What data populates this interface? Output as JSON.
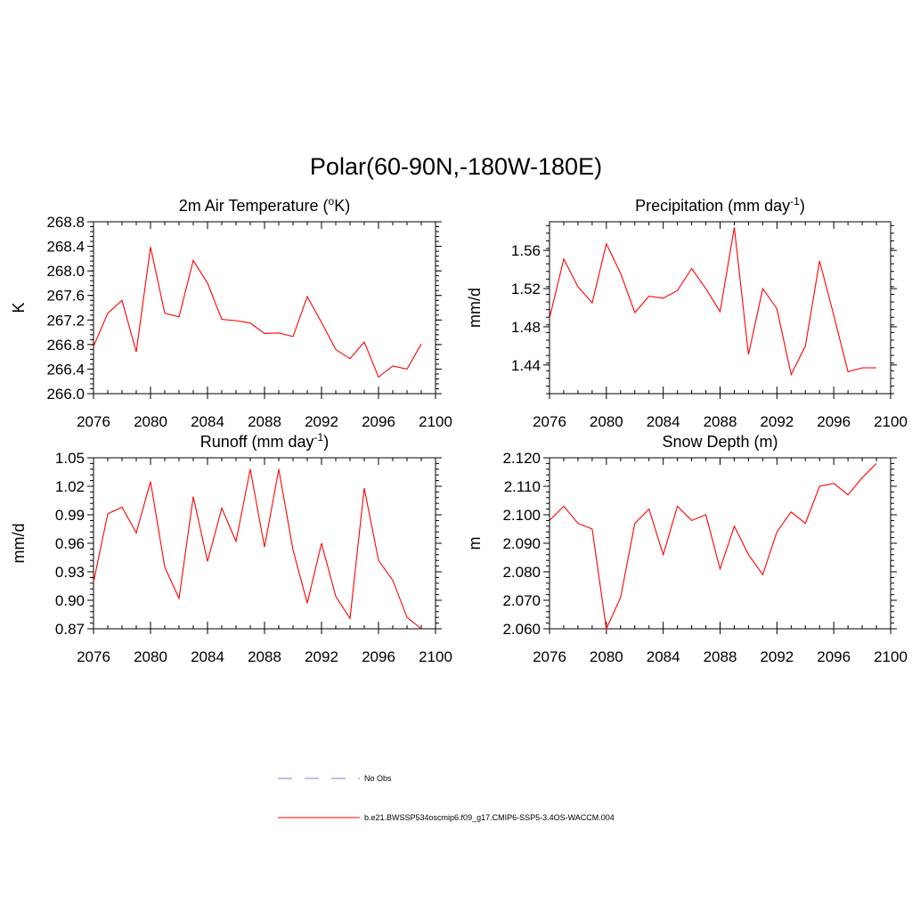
{
  "title": "Polar(60-90N,-180W-180E)",
  "colors": {
    "model": "#ff0000",
    "obs": "#9999dd",
    "axis": "#000000"
  },
  "legend": {
    "obs_label": "No Obs",
    "model_label": "b.e21.BWSSP534oscmip6.f09_g17.CMIP6-SSP5-3.4OS-WACCM.004"
  },
  "chart_data": [
    {
      "type": "line",
      "title_main": "2m Air Temperature (",
      "title_sup_pre": "o",
      "title_after": "K)",
      "title_sup_post": "",
      "title_end": "",
      "ylabel": "K",
      "xlim": [
        2076,
        2100
      ],
      "ylim": [
        266.0,
        268.8
      ],
      "x_ticks": [
        "2076",
        "2080",
        "2084",
        "2088",
        "2092",
        "2096",
        "2100"
      ],
      "y_ticks": [
        "266.0",
        "266.4",
        "266.8",
        "267.2",
        "267.6",
        "268.0",
        "268.4",
        "268.8"
      ],
      "series": [
        {
          "name": "b.e21.BWSSP534oscmip6.f09_g17.CMIP6-SSP5-3.4OS-WACCM.004",
          "x": [
            2076,
            2077,
            2078,
            2079,
            2080,
            2081,
            2082,
            2083,
            2084,
            2085,
            2086,
            2087,
            2088,
            2089,
            2090,
            2091,
            2092,
            2093,
            2094,
            2095,
            2096,
            2097,
            2098,
            2099
          ],
          "values": [
            266.77,
            267.31,
            267.52,
            266.68,
            268.39,
            267.31,
            267.25,
            268.17,
            267.8,
            267.21,
            267.19,
            267.15,
            266.98,
            266.99,
            266.93,
            267.58,
            267.16,
            266.72,
            266.57,
            266.84,
            266.27,
            266.45,
            266.4,
            266.81
          ]
        }
      ]
    },
    {
      "type": "line",
      "title_main": "Precipitation (mm day",
      "title_sup_pre": "",
      "title_after": "",
      "title_sup_post": "-1",
      "title_end": ")",
      "ylabel": "mm/d",
      "xlim": [
        2076,
        2100
      ],
      "ylim": [
        1.41,
        1.59
      ],
      "x_ticks": [
        "2076",
        "2080",
        "2084",
        "2088",
        "2092",
        "2096",
        "2100"
      ],
      "y_ticks": [
        "1.44",
        "1.48",
        "1.52",
        "1.56"
      ],
      "series": [
        {
          "name": "b.e21.BWSSP534oscmip6.f09_g17.CMIP6-SSP5-3.4OS-WACCM.004",
          "x": [
            2076,
            2077,
            2078,
            2079,
            2080,
            2081,
            2082,
            2083,
            2084,
            2085,
            2086,
            2087,
            2088,
            2089,
            2090,
            2091,
            2092,
            2093,
            2094,
            2095,
            2096,
            2097,
            2098,
            2099
          ],
          "values": [
            1.489,
            1.551,
            1.522,
            1.505,
            1.567,
            1.536,
            1.495,
            1.512,
            1.51,
            1.518,
            1.541,
            1.52,
            1.496,
            1.584,
            1.451,
            1.52,
            1.499,
            1.43,
            1.46,
            1.549,
            1.492,
            1.433,
            1.437,
            1.437
          ]
        }
      ]
    },
    {
      "type": "line",
      "title_main": "Runoff (mm day",
      "title_sup_pre": "",
      "title_after": "",
      "title_sup_post": "-1",
      "title_end": ")",
      "ylabel": "mm/d",
      "xlim": [
        2076,
        2100
      ],
      "ylim": [
        0.87,
        1.05
      ],
      "x_ticks": [
        "2076",
        "2080",
        "2084",
        "2088",
        "2092",
        "2096",
        "2100"
      ],
      "y_ticks": [
        "0.87",
        "0.90",
        "0.93",
        "0.96",
        "0.99",
        "1.02",
        "1.05"
      ],
      "series": [
        {
          "name": "b.e21.BWSSP534oscmip6.f09_g17.CMIP6-SSP5-3.4OS-WACCM.004",
          "x": [
            2076,
            2077,
            2078,
            2079,
            2080,
            2081,
            2082,
            2083,
            2084,
            2085,
            2086,
            2087,
            2088,
            2089,
            2090,
            2091,
            2092,
            2093,
            2094,
            2095,
            2096,
            2097,
            2098,
            2099
          ],
          "values": [
            0.919,
            0.991,
            0.998,
            0.971,
            1.025,
            0.935,
            0.902,
            1.009,
            0.941,
            0.997,
            0.962,
            1.038,
            0.956,
            1.038,
            0.953,
            0.897,
            0.96,
            0.904,
            0.881,
            1.018,
            0.942,
            0.921,
            0.882,
            0.87
          ]
        }
      ]
    },
    {
      "type": "line",
      "title_main": "Snow Depth (m)",
      "title_sup_pre": "",
      "title_after": "",
      "title_sup_post": "",
      "title_end": "",
      "ylabel": "m",
      "xlim": [
        2076,
        2100
      ],
      "ylim": [
        2.06,
        2.12
      ],
      "x_ticks": [
        "2076",
        "2080",
        "2084",
        "2088",
        "2092",
        "2096",
        "2100"
      ],
      "y_ticks": [
        "2.060",
        "2.070",
        "2.080",
        "2.090",
        "2.100",
        "2.110",
        "2.120"
      ],
      "series": [
        {
          "name": "b.e21.BWSSP534oscmip6.f09_g17.CMIP6-SSP5-3.4OS-WACCM.004",
          "x": [
            2076,
            2077,
            2078,
            2079,
            2080,
            2081,
            2082,
            2083,
            2084,
            2085,
            2086,
            2087,
            2088,
            2089,
            2090,
            2091,
            2092,
            2093,
            2094,
            2095,
            2096,
            2097,
            2098,
            2099
          ],
          "values": [
            2.098,
            2.103,
            2.097,
            2.095,
            2.06,
            2.071,
            2.097,
            2.102,
            2.086,
            2.103,
            2.098,
            2.1,
            2.081,
            2.096,
            2.086,
            2.079,
            2.094,
            2.101,
            2.097,
            2.11,
            2.111,
            2.107,
            2.113,
            2.118
          ]
        }
      ]
    }
  ]
}
